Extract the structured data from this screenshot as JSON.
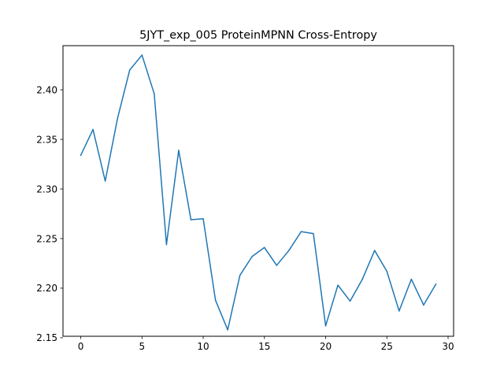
{
  "chart_data": {
    "type": "line",
    "title": "5JYT_exp_005 ProteinMPNN Cross-Entropy",
    "xlabel": "",
    "ylabel": "",
    "xlim": [
      -1.45,
      30.45
    ],
    "ylim": [
      2.1515,
      2.4445
    ],
    "grid": false,
    "xticks": [
      0,
      5,
      10,
      15,
      20,
      25,
      30
    ],
    "yticks": [
      2.15,
      2.2,
      2.25,
      2.3,
      2.35,
      2.4
    ],
    "ytick_labels": [
      "2.15",
      "2.20",
      "2.25",
      "2.30",
      "2.35",
      "2.40"
    ],
    "series": [
      {
        "color": "#1f77b4",
        "x": [
          0,
          1,
          2,
          3,
          4,
          5,
          6,
          7,
          8,
          9,
          10,
          11,
          12,
          13,
          14,
          15,
          16,
          17,
          18,
          19,
          20,
          21,
          22,
          23,
          24,
          25,
          26,
          27,
          28,
          29
        ],
        "y": [
          2.334,
          2.36,
          2.308,
          2.371,
          2.42,
          2.435,
          2.396,
          2.244,
          2.339,
          2.269,
          2.27,
          2.188,
          2.158,
          2.213,
          2.232,
          2.241,
          2.223,
          2.238,
          2.257,
          2.255,
          2.162,
          2.203,
          2.187,
          2.209,
          2.238,
          2.217,
          2.177,
          2.209,
          2.183,
          2.204
        ]
      }
    ]
  }
}
